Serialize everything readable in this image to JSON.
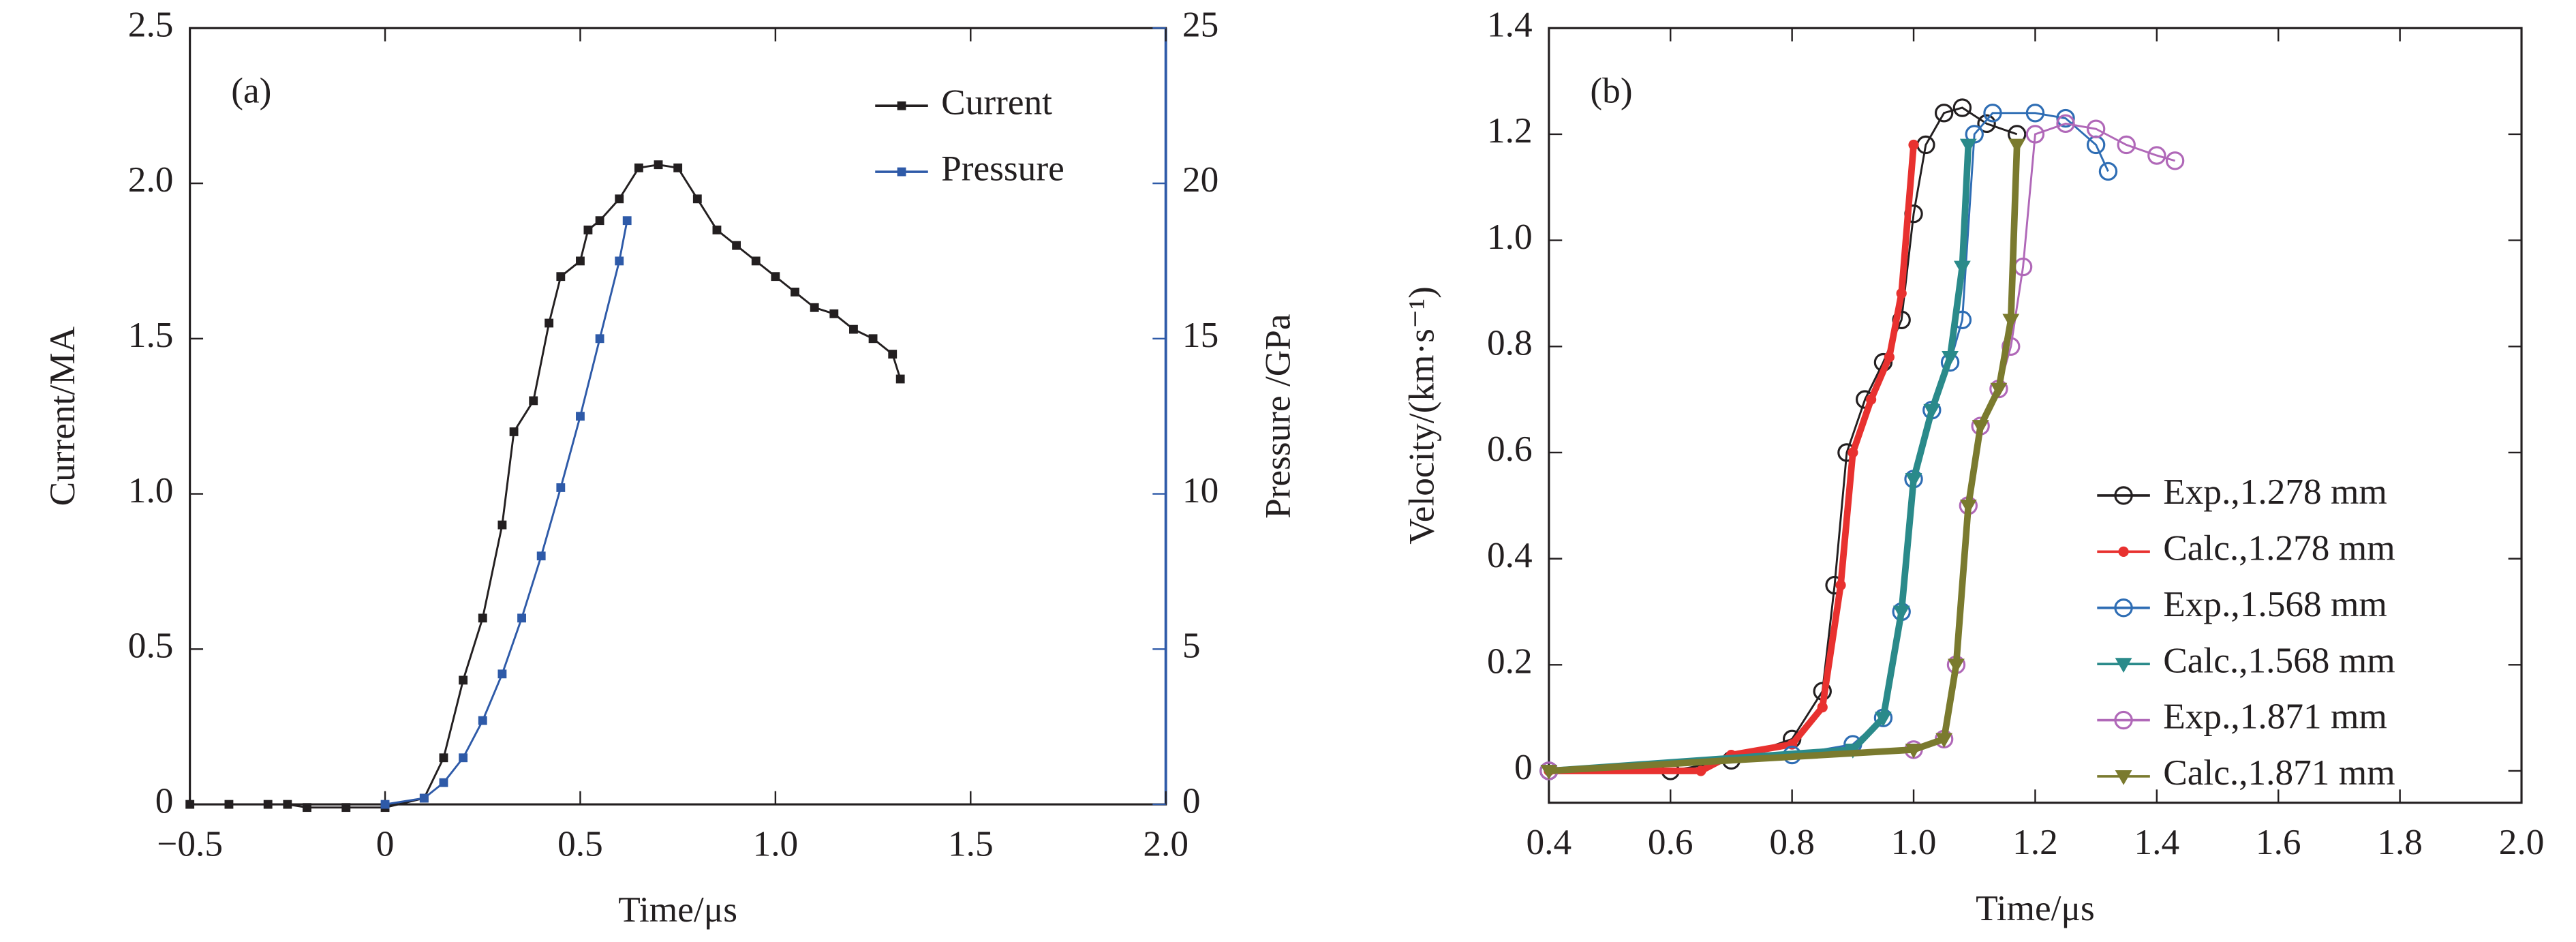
{
  "chart_data": [
    {
      "type": "line",
      "annotation": "(a)",
      "xlabel": "Time/μs",
      "ylabel": "Current/MA",
      "y2label": "Pressure /GPa",
      "y2color": "#2e5aa8",
      "legend": "upper right",
      "xlim": [
        -0.5,
        2.0
      ],
      "xticks": [
        {
          "value": -0.5,
          "label": "−0.5"
        },
        0,
        0.5,
        {
          "value": 1.0,
          "label": "1.0"
        },
        1.5,
        {
          "value": 2.0,
          "label": "2.0"
        }
      ],
      "ylim": [
        0,
        2.5
      ],
      "yticks": [
        0,
        0.5,
        {
          "value": 1.0,
          "label": "1.0"
        },
        1.5,
        {
          "value": 2.0,
          "label": "2.0"
        },
        2.5
      ],
      "y2lim": [
        0,
        25
      ],
      "y2ticks": [
        0,
        5,
        10,
        15,
        20,
        25
      ],
      "series": [
        {
          "name": "Current",
          "color": "#231f20",
          "marker": "square",
          "x": [
            -0.5,
            -0.4,
            -0.3,
            -0.25,
            -0.2,
            -0.1,
            0,
            0.1,
            0.15,
            0.2,
            0.25,
            0.3,
            0.33,
            0.38,
            0.42,
            0.45,
            0.5,
            0.52,
            0.55,
            0.6,
            0.65,
            0.7,
            0.75,
            0.8,
            0.85,
            0.9,
            0.95,
            1.0,
            1.05,
            1.1,
            1.15,
            1.2,
            1.25,
            1.3,
            1.32
          ],
          "values": [
            0,
            0,
            0,
            0,
            -0.01,
            -0.01,
            -0.01,
            0.02,
            0.15,
            0.4,
            0.6,
            0.9,
            1.2,
            1.3,
            1.55,
            1.7,
            1.75,
            1.85,
            1.88,
            1.95,
            2.05,
            2.06,
            2.05,
            1.95,
            1.85,
            1.8,
            1.75,
            1.7,
            1.65,
            1.6,
            1.58,
            1.53,
            1.5,
            1.45,
            1.37
          ]
        },
        {
          "name": "Pressure",
          "color": "#2e5aa8",
          "marker": "square",
          "axis": "y2",
          "x": [
            0,
            0.1,
            0.15,
            0.2,
            0.25,
            0.3,
            0.35,
            0.4,
            0.45,
            0.5,
            0.55,
            0.6,
            0.62
          ],
          "values": [
            0,
            0.2,
            0.7,
            1.5,
            2.7,
            4.2,
            6,
            8,
            10.2,
            12.5,
            15,
            17.5,
            18.8
          ]
        }
      ]
    },
    {
      "type": "line",
      "annotation": "(b)",
      "xlabel": "Time/μs",
      "ylabel": "Velocity/(km·s⁻¹)",
      "legend": "lower right",
      "xlim": [
        0.4,
        2.0
      ],
      "xticks": [
        0.4,
        0.6,
        0.8,
        {
          "value": 1.0,
          "label": "1.0"
        },
        1.2,
        1.4,
        1.6,
        1.8,
        {
          "value": 2.0,
          "label": "2.0"
        }
      ],
      "ylim": [
        -0.06,
        1.4
      ],
      "yticks": [
        0,
        0.2,
        0.4,
        0.6,
        0.8,
        {
          "value": 1.0,
          "label": "1.0"
        },
        1.2,
        1.4
      ],
      "series": [
        {
          "name": "Exp.,1.278 mm",
          "color": "#231f20",
          "marker": "circle",
          "x": [
            0.4,
            0.6,
            0.7,
            0.8,
            0.85,
            0.87,
            0.89,
            0.92,
            0.95,
            0.98,
            1.0,
            1.02,
            1.05,
            1.08,
            1.12,
            1.17
          ],
          "values": [
            0,
            0,
            0.02,
            0.06,
            0.15,
            0.35,
            0.6,
            0.7,
            0.77,
            0.85,
            1.05,
            1.18,
            1.24,
            1.25,
            1.22,
            1.2
          ]
        },
        {
          "name": "Calc.,1.278 mm",
          "color": "#e8312f",
          "marker": "dot",
          "x": [
            0.4,
            0.65,
            0.7,
            0.8,
            0.85,
            0.88,
            0.9,
            0.93,
            0.96,
            0.98,
            1.0
          ],
          "values": [
            0,
            0,
            0.03,
            0.05,
            0.12,
            0.35,
            0.6,
            0.7,
            0.78,
            0.9,
            1.18
          ]
        },
        {
          "name": "Exp.,1.568 mm",
          "color": "#2e6db4",
          "marker": "circle",
          "x": [
            0.4,
            0.8,
            0.9,
            0.95,
            0.98,
            1.0,
            1.03,
            1.06,
            1.08,
            1.1,
            1.13,
            1.2,
            1.25,
            1.3,
            1.32
          ],
          "values": [
            0,
            0.03,
            0.05,
            0.1,
            0.3,
            0.55,
            0.68,
            0.77,
            0.85,
            1.2,
            1.24,
            1.24,
            1.23,
            1.18,
            1.13
          ]
        },
        {
          "name": "Calc.,1.568 mm",
          "color": "#2a8a8a",
          "marker": "triangle",
          "x": [
            0.4,
            0.9,
            0.95,
            0.98,
            1.0,
            1.03,
            1.06,
            1.08,
            1.09
          ],
          "values": [
            0,
            0.04,
            0.1,
            0.3,
            0.55,
            0.68,
            0.78,
            0.95,
            1.18
          ]
        },
        {
          "name": "Exp.,1.871 mm",
          "color": "#b068b8",
          "marker": "circle",
          "x": [
            0.4,
            1.0,
            1.05,
            1.07,
            1.09,
            1.11,
            1.14,
            1.16,
            1.18,
            1.2,
            1.25,
            1.3,
            1.35,
            1.4,
            1.43
          ],
          "values": [
            0,
            0.04,
            0.06,
            0.2,
            0.5,
            0.65,
            0.72,
            0.8,
            0.95,
            1.2,
            1.22,
            1.21,
            1.18,
            1.16,
            1.15
          ]
        },
        {
          "name": "Calc.,1.871 mm",
          "color": "#7a7a2e",
          "marker": "triangle",
          "x": [
            0.4,
            1.0,
            1.05,
            1.07,
            1.09,
            1.11,
            1.14,
            1.16,
            1.17
          ],
          "values": [
            0,
            0.04,
            0.06,
            0.2,
            0.5,
            0.65,
            0.72,
            0.85,
            1.18
          ]
        }
      ]
    }
  ]
}
